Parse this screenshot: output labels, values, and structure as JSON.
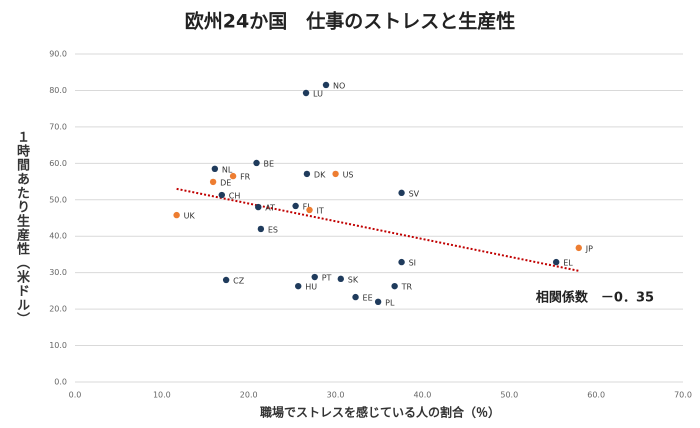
{
  "chart_data": {
    "type": "scatter",
    "title": "欧州24か国　仕事のストレスと生産性",
    "x_label": "職場でストレスを感じている人の割合（％）",
    "y_label": "１時間あたり生産性（米ドル）",
    "annotation": "相関係数　－0．35",
    "labels": [
      "NO",
      "LU",
      "BE",
      "NL",
      "FR",
      "DE",
      "DK",
      "US",
      "SV",
      "CH",
      "AT",
      "FI",
      "IT",
      "UK",
      "ES",
      "SI",
      "EL",
      "JP",
      "CZ",
      "PT",
      "SK",
      "HU",
      "TR",
      "EE",
      "PL"
    ],
    "x": [
      28.9,
      26.6,
      20.9,
      16.1,
      18.2,
      15.9,
      26.7,
      30.0,
      37.6,
      16.9,
      21.1,
      25.4,
      27.0,
      11.7,
      21.4,
      37.6,
      55.4,
      58.0,
      17.4,
      27.6,
      30.6,
      25.7,
      36.8,
      32.3,
      34.9
    ],
    "y": [
      81.5,
      79.3,
      60.1,
      58.5,
      56.5,
      54.9,
      57.1,
      57.1,
      51.9,
      51.3,
      48.0,
      48.3,
      47.2,
      45.8,
      42.0,
      32.9,
      32.9,
      36.8,
      28.0,
      28.8,
      28.3,
      26.3,
      26.3,
      23.3,
      22.0
    ],
    "colors": [
      "#1f3b5c",
      "#1f3b5c",
      "#1f3b5c",
      "#1f3b5c",
      "#ed7d31",
      "#ed7d31",
      "#1f3b5c",
      "#ed7d31",
      "#1f3b5c",
      "#1f3b5c",
      "#1f3b5c",
      "#1f3b5c",
      "#ed7d31",
      "#ed7d31",
      "#1f3b5c",
      "#1f3b5c",
      "#1f3b5c",
      "#ed7d31",
      "#1f3b5c",
      "#1f3b5c",
      "#1f3b5c",
      "#1f3b5c",
      "#1f3b5c",
      "#1f3b5c",
      "#1f3b5c"
    ],
    "trendline": {
      "x": [
        11.7,
        58.0
      ],
      "y": [
        53.0,
        30.5
      ],
      "color": "#c00000"
    },
    "xlim": [
      0,
      70
    ],
    "ylim": [
      0,
      90
    ],
    "xticks": [
      {
        "value": 0,
        "label": "0.0"
      },
      {
        "value": 10,
        "label": "10.0"
      },
      {
        "value": 20,
        "label": "20.0"
      },
      {
        "value": 30,
        "label": "30.0"
      },
      {
        "value": 40,
        "label": "40.0"
      },
      {
        "value": 50,
        "label": "50.0"
      },
      {
        "value": 60,
        "label": "60.0"
      },
      {
        "value": 70,
        "label": "70.0"
      }
    ],
    "yticks": [
      {
        "value": 0,
        "label": "0.0"
      },
      {
        "value": 10,
        "label": "10.0"
      },
      {
        "value": 20,
        "label": "20.0"
      },
      {
        "value": 30,
        "label": "30.0"
      },
      {
        "value": 40,
        "label": "40.0"
      },
      {
        "value": 50,
        "label": "50.0"
      },
      {
        "value": 60,
        "label": "60.0"
      },
      {
        "value": 70,
        "label": "70.0"
      },
      {
        "value": 80,
        "label": "80.0"
      },
      {
        "value": 90,
        "label": "90.0"
      }
    ],
    "grid": true
  }
}
